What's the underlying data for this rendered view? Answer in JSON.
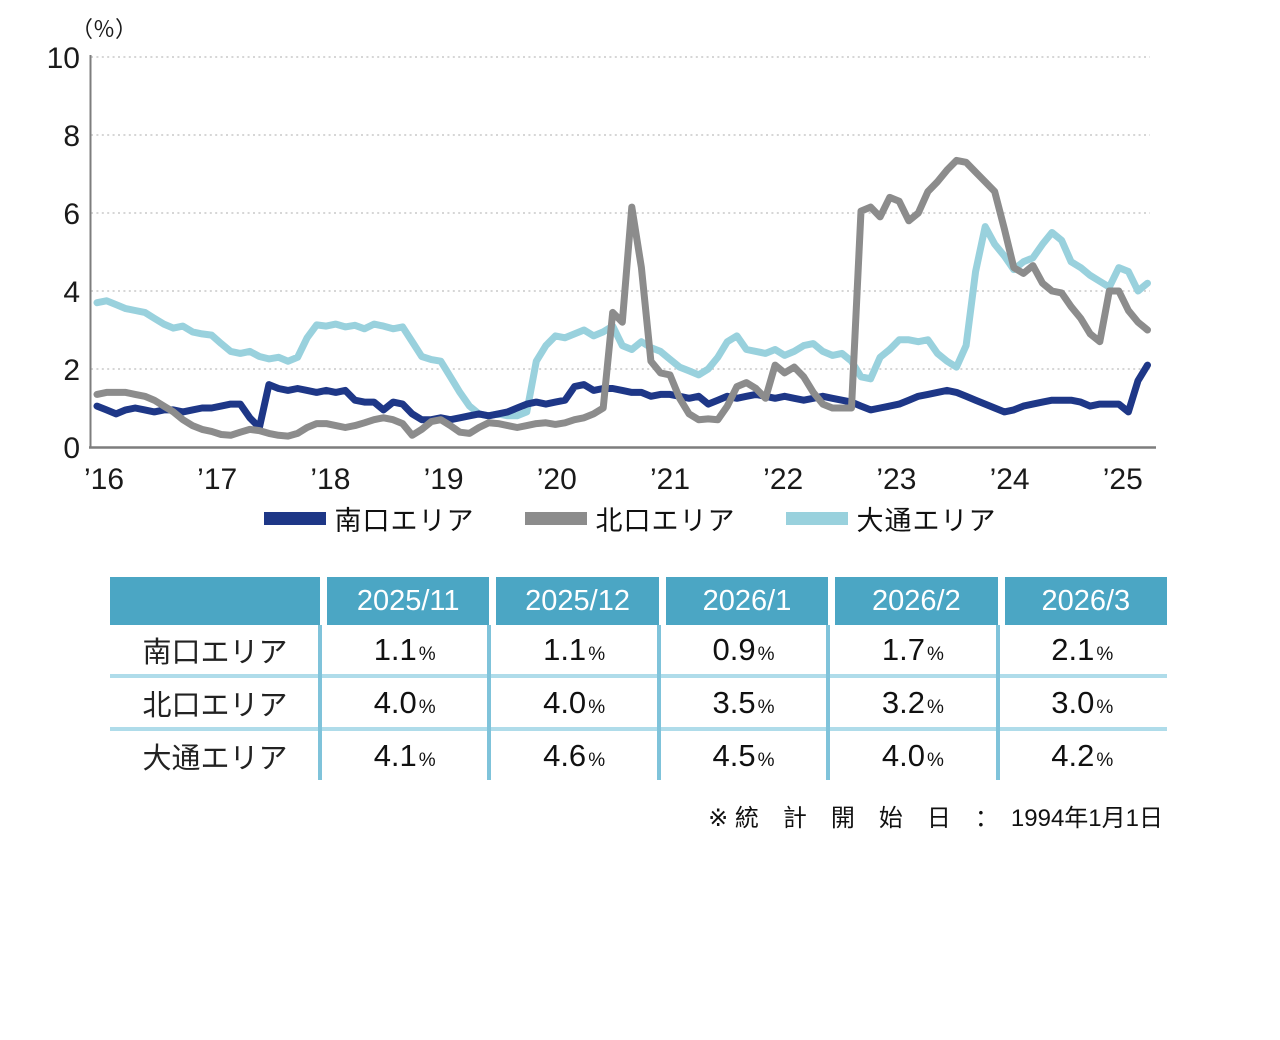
{
  "chart_data": {
    "type": "line",
    "unit_label": "（％）",
    "ylim": [
      0,
      10
    ],
    "y_ticks": [
      0,
      2,
      4,
      6,
      8,
      10
    ],
    "x_tick_labels": [
      "’16",
      "’17",
      "’18",
      "’19",
      "’20",
      "’21",
      "’22",
      "’23",
      "’24",
      "’25"
    ],
    "grid": "horizontal-dotted",
    "legend_position": "bottom-center",
    "x_unit": "month",
    "x_start": "2016-01",
    "series": [
      {
        "key": "minamiguchi-area",
        "name": "南口エリア",
        "color": "#1e3787",
        "values": [
          1.05,
          0.95,
          0.85,
          0.95,
          1.0,
          0.95,
          0.9,
          0.95,
          0.95,
          0.9,
          0.95,
          1.0,
          1.0,
          1.05,
          1.1,
          1.1,
          0.75,
          0.5,
          1.6,
          1.5,
          1.45,
          1.5,
          1.45,
          1.4,
          1.45,
          1.4,
          1.45,
          1.2,
          1.15,
          1.15,
          0.95,
          1.15,
          1.1,
          0.85,
          0.7,
          0.7,
          0.75,
          0.7,
          0.75,
          0.8,
          0.85,
          0.8,
          0.85,
          0.9,
          1.0,
          1.1,
          1.15,
          1.1,
          1.15,
          1.2,
          1.55,
          1.6,
          1.45,
          1.5,
          1.5,
          1.45,
          1.4,
          1.4,
          1.3,
          1.35,
          1.35,
          1.3,
          1.25,
          1.3,
          1.1,
          1.2,
          1.3,
          1.25,
          1.3,
          1.35,
          1.3,
          1.25,
          1.3,
          1.25,
          1.2,
          1.25,
          1.3,
          1.25,
          1.2,
          1.15,
          1.05,
          0.95,
          1.0,
          1.05,
          1.1,
          1.2,
          1.3,
          1.35,
          1.4,
          1.45,
          1.4,
          1.3,
          1.2,
          1.1,
          1.0,
          0.9,
          0.95,
          1.05,
          1.1,
          1.15,
          1.2,
          1.2,
          1.2,
          1.15,
          1.05,
          1.1,
          1.1,
          1.1,
          0.9,
          1.7,
          2.1
        ]
      },
      {
        "key": "kitaguchi-area",
        "name": "北口エリア",
        "color": "#8c8c8c",
        "values": [
          1.35,
          1.4,
          1.4,
          1.4,
          1.35,
          1.3,
          1.2,
          1.05,
          0.9,
          0.7,
          0.55,
          0.45,
          0.4,
          0.32,
          0.3,
          0.38,
          0.45,
          0.42,
          0.35,
          0.3,
          0.28,
          0.35,
          0.5,
          0.6,
          0.6,
          0.55,
          0.5,
          0.55,
          0.62,
          0.7,
          0.75,
          0.7,
          0.6,
          0.3,
          0.45,
          0.65,
          0.7,
          0.55,
          0.38,
          0.35,
          0.5,
          0.62,
          0.6,
          0.55,
          0.5,
          0.55,
          0.6,
          0.62,
          0.58,
          0.62,
          0.7,
          0.75,
          0.85,
          1.0,
          3.45,
          3.2,
          6.15,
          4.6,
          2.2,
          1.9,
          1.85,
          1.25,
          0.85,
          0.7,
          0.72,
          0.7,
          1.05,
          1.55,
          1.65,
          1.5,
          1.25,
          2.1,
          1.9,
          2.05,
          1.8,
          1.4,
          1.1,
          1.0,
          1.0,
          1.0,
          6.05,
          6.15,
          5.9,
          6.4,
          6.3,
          5.8,
          6.0,
          6.55,
          6.8,
          7.1,
          7.35,
          7.3,
          7.05,
          6.8,
          6.55,
          5.6,
          4.6,
          4.45,
          4.65,
          4.2,
          4.0,
          3.95,
          3.6,
          3.3,
          2.9,
          2.7,
          4.0,
          4.0,
          3.5,
          3.2,
          3.0
        ]
      },
      {
        "key": "odori-area",
        "name": "大通エリア",
        "color": "#99d1dd",
        "values": [
          3.7,
          3.75,
          3.65,
          3.55,
          3.5,
          3.45,
          3.3,
          3.15,
          3.05,
          3.1,
          2.95,
          2.9,
          2.87,
          2.65,
          2.45,
          2.4,
          2.45,
          2.32,
          2.26,
          2.3,
          2.2,
          2.3,
          2.8,
          3.13,
          3.1,
          3.15,
          3.08,
          3.12,
          3.03,
          3.15,
          3.1,
          3.03,
          3.08,
          2.7,
          2.32,
          2.24,
          2.2,
          1.8,
          1.4,
          1.05,
          0.85,
          0.8,
          0.85,
          0.8,
          0.8,
          0.9,
          2.2,
          2.6,
          2.85,
          2.8,
          2.9,
          3.0,
          2.85,
          2.95,
          3.1,
          2.6,
          2.5,
          2.7,
          2.55,
          2.45,
          2.25,
          2.05,
          1.95,
          1.85,
          2.0,
          2.3,
          2.7,
          2.85,
          2.5,
          2.45,
          2.4,
          2.5,
          2.35,
          2.45,
          2.6,
          2.65,
          2.45,
          2.35,
          2.4,
          2.2,
          1.8,
          1.75,
          2.3,
          2.5,
          2.75,
          2.75,
          2.7,
          2.75,
          2.4,
          2.2,
          2.05,
          2.6,
          4.5,
          5.65,
          5.2,
          4.9,
          4.55,
          4.75,
          4.85,
          5.2,
          5.5,
          5.3,
          4.75,
          4.6,
          4.4,
          4.25,
          4.1,
          4.6,
          4.5,
          4.0,
          4.2
        ]
      }
    ],
    "draw_order": [
      2,
      0,
      1
    ]
  },
  "table": {
    "columns": [
      "2025/11",
      "2025/12",
      "2026/1",
      "2026/2",
      "2026/3"
    ],
    "rows": [
      {
        "label": "南口エリア",
        "values": [
          "1.1",
          "1.1",
          "0.9",
          "1.7",
          "2.1"
        ]
      },
      {
        "label": "北口エリア",
        "values": [
          "4.0",
          "4.0",
          "3.5",
          "3.2",
          "3.0"
        ]
      },
      {
        "label": "大通エリア",
        "values": [
          "4.1",
          "4.6",
          "4.5",
          "4.0",
          "4.2"
        ]
      }
    ],
    "unit": "%",
    "header_bg": "#4ba6c4",
    "vline_color": "#7fc3da",
    "divider_color": "#afdcea"
  },
  "footnote": "※ 統　計　開　始　日　：　1994年1月1日"
}
